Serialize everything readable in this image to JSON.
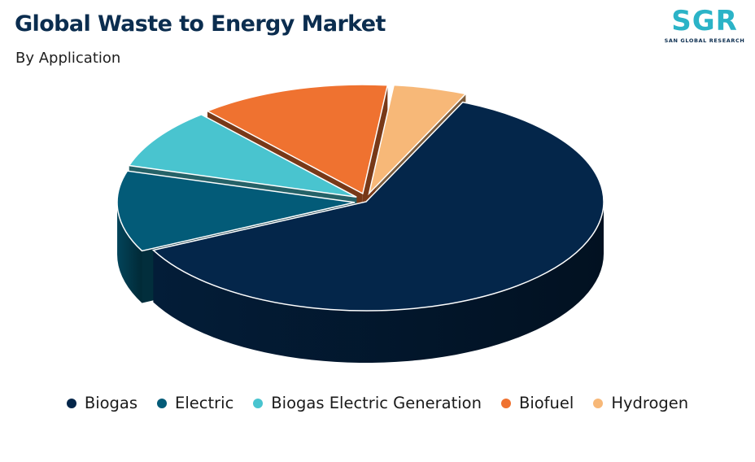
{
  "header": {
    "title": "Global Waste to Energy Market",
    "subtitle": "By Application"
  },
  "logo": {
    "mark": "SGR",
    "tagline": "SAN GLOBAL RESEARCH"
  },
  "chart_data": {
    "type": "pie",
    "style": "3d-exploded",
    "title": "Global Waste to Energy Market",
    "subtitle": "By Application",
    "legend_position": "bottom",
    "categories": [
      "Biogas",
      "Electric",
      "Biogas Electric Generation",
      "Biofuel",
      "Hydrogen"
    ],
    "values": [
      61,
      12,
      9,
      13,
      5
    ],
    "unit": "%",
    "colors": [
      "#04264a",
      "#035b78",
      "#49c4cf",
      "#ef7230",
      "#f7b878"
    ]
  }
}
